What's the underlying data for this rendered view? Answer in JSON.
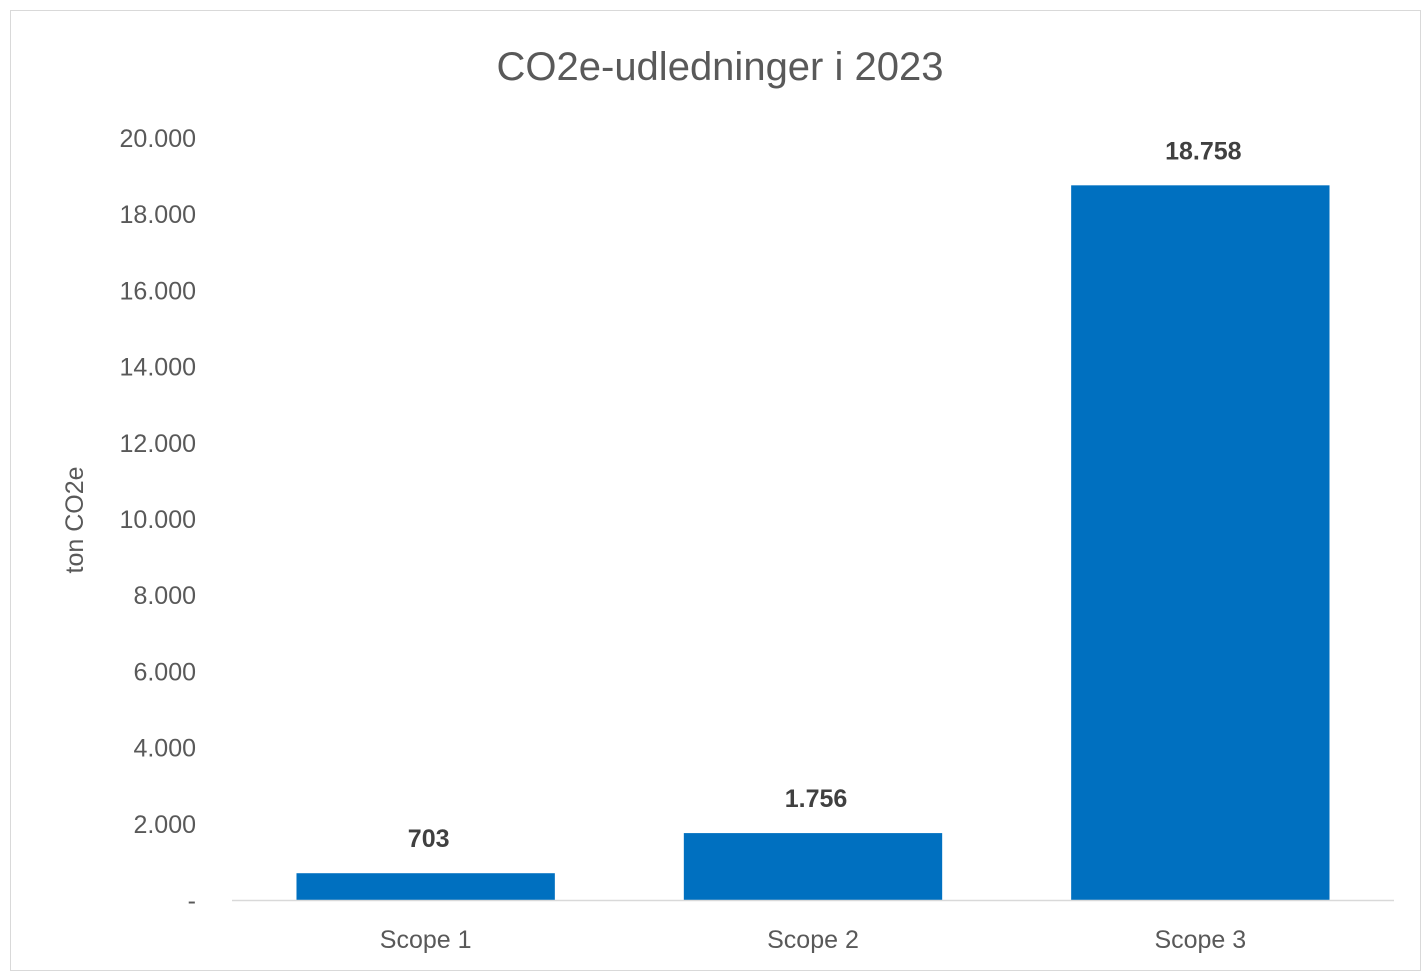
{
  "chart_data": {
    "type": "bar",
    "title": "CO2e-udledninger i 2023",
    "xlabel": "",
    "ylabel": "ton CO2e",
    "categories": [
      "Scope 1",
      "Scope 2",
      "Scope 3"
    ],
    "values": [
      703,
      1756,
      18758
    ],
    "data_labels": [
      "703",
      "1.756",
      "18.758"
    ],
    "ylim": [
      0,
      20000
    ],
    "yticks": [
      0,
      2000,
      4000,
      6000,
      8000,
      10000,
      12000,
      14000,
      16000,
      18000,
      20000
    ],
    "ytick_labels": [
      "-",
      "2.000",
      "4.000",
      "6.000",
      "8.000",
      "10.000",
      "12.000",
      "14.000",
      "16.000",
      "18.000",
      "20.000"
    ],
    "grid": false,
    "legend": "none",
    "bar_color": "#0070C0",
    "axis_color": "#D9D9D9"
  }
}
